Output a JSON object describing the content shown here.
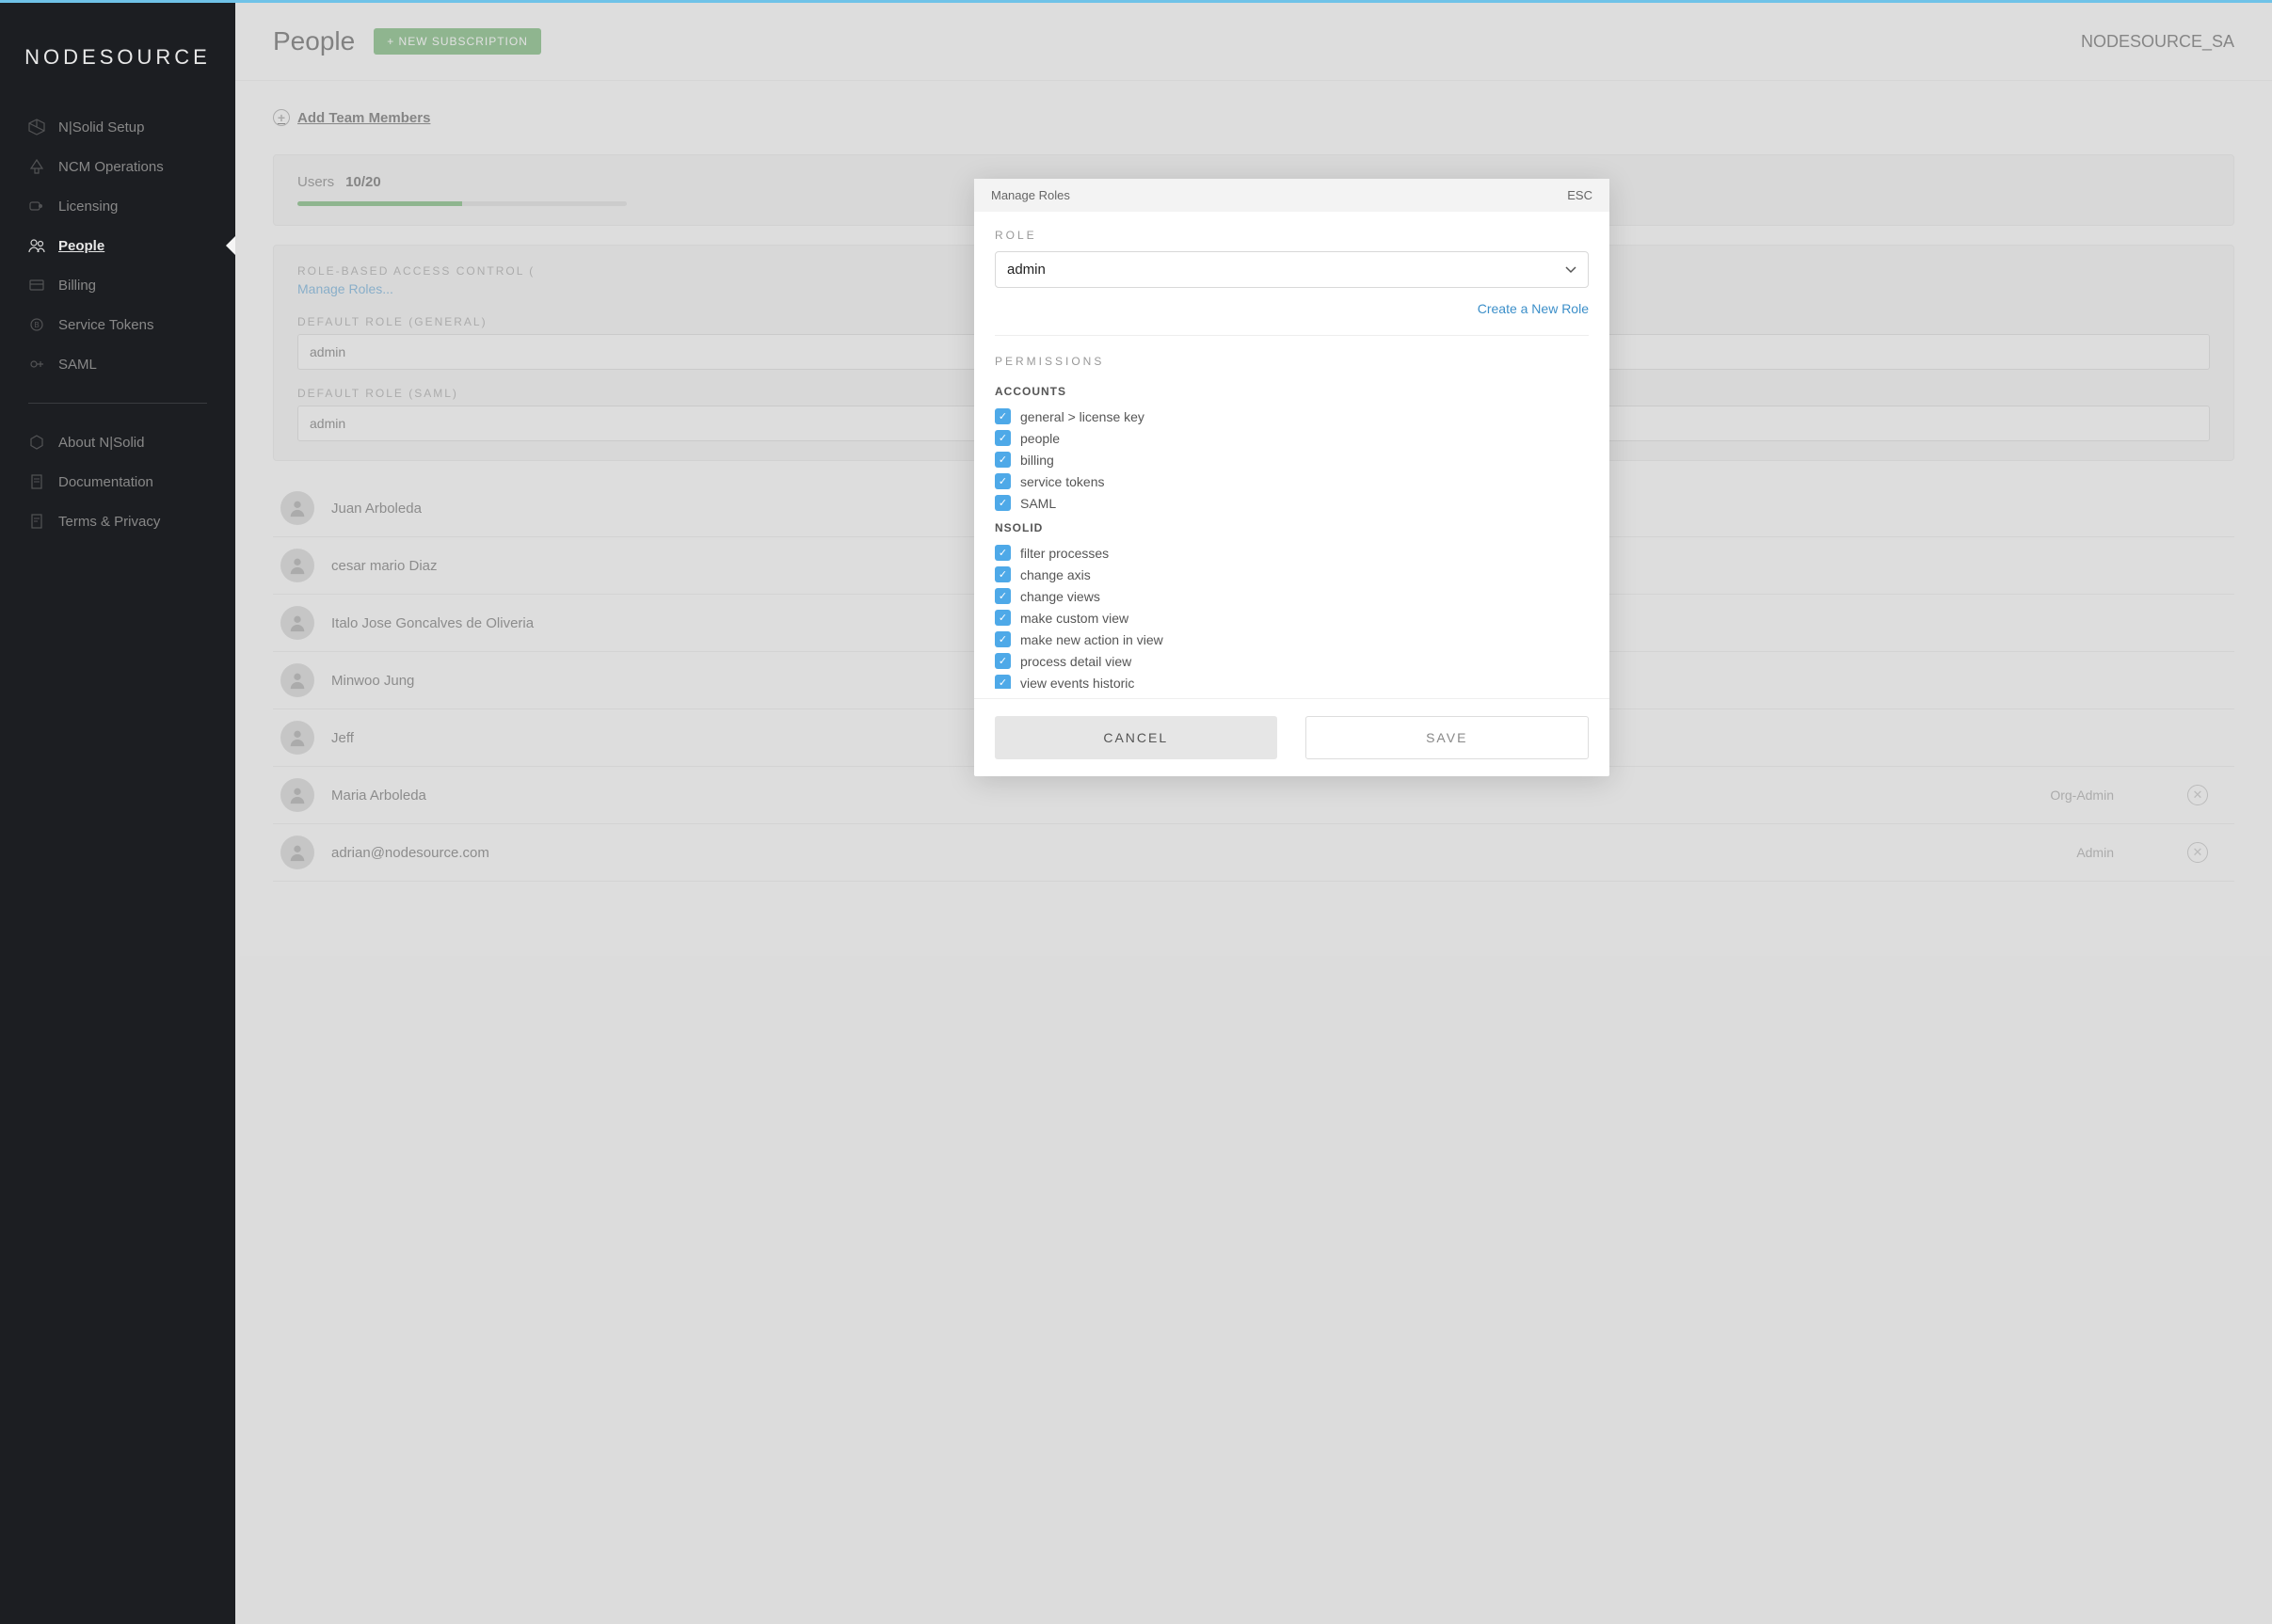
{
  "brand": "NODESOURCE",
  "sidebar": {
    "main_items": [
      {
        "label": "N|Solid Setup",
        "icon": "cube"
      },
      {
        "label": "NCM Operations",
        "icon": "tree"
      },
      {
        "label": "Licensing",
        "icon": "key"
      },
      {
        "label": "People",
        "icon": "people",
        "active": true
      },
      {
        "label": "Billing",
        "icon": "card"
      },
      {
        "label": "Service Tokens",
        "icon": "token"
      },
      {
        "label": "SAML",
        "icon": "saml"
      }
    ],
    "secondary_items": [
      {
        "label": "About N|Solid",
        "icon": "hex"
      },
      {
        "label": "Documentation",
        "icon": "doc"
      },
      {
        "label": "Terms & Privacy",
        "icon": "terms"
      }
    ]
  },
  "header": {
    "title": "People",
    "new_subscription_label": "+ NEW SUBSCRIPTION",
    "org_name": "NODESOURCE_SA"
  },
  "content": {
    "add_members_label": "Add Team Members",
    "users_label": "Users",
    "users_count": "10/20",
    "progress_percent": 50,
    "rbac_title": "ROLE-BASED ACCESS CONTROL (",
    "manage_roles_label": "Manage Roles...",
    "default_role_general_label": "DEFAULT ROLE (GENERAL)",
    "default_role_general_value": "admin",
    "default_role_saml_label": "DEFAULT ROLE (SAML)",
    "default_role_saml_value": "admin",
    "users": [
      {
        "name": "Juan Arboleda",
        "role": ""
      },
      {
        "name": "cesar mario Diaz",
        "role": ""
      },
      {
        "name": "Italo Jose Goncalves de Oliveria",
        "role": ""
      },
      {
        "name": "Minwoo Jung",
        "role": ""
      },
      {
        "name": "Jeff",
        "role": ""
      },
      {
        "name": "Maria Arboleda",
        "role": "Org-Admin"
      },
      {
        "name": "adrian@nodesource.com",
        "role": "Admin"
      }
    ]
  },
  "modal": {
    "title": "Manage Roles",
    "esc_label": "ESC",
    "role_label": "ROLE",
    "role_value": "admin",
    "create_role_label": "Create a New Role",
    "permissions_label": "PERMISSIONS",
    "groups": [
      {
        "title": "ACCOUNTS",
        "items": [
          {
            "label": "general > license key",
            "checked": true
          },
          {
            "label": "people",
            "checked": true
          },
          {
            "label": "billing",
            "checked": true
          },
          {
            "label": "service tokens",
            "checked": true
          },
          {
            "label": "SAML",
            "checked": true
          }
        ]
      },
      {
        "title": "NSOLID",
        "items": [
          {
            "label": "filter processes",
            "checked": true
          },
          {
            "label": "change axis",
            "checked": true
          },
          {
            "label": "change views",
            "checked": true
          },
          {
            "label": "make custom view",
            "checked": true
          },
          {
            "label": "make new action in view",
            "checked": true
          },
          {
            "label": "process detail view",
            "checked": true
          },
          {
            "label": "view events historic",
            "checked": true
          }
        ]
      }
    ],
    "cancel_label": "CANCEL",
    "save_label": "SAVE"
  },
  "colors": {
    "sidebar_bg": "#1c1e22",
    "accent_green": "#4a9d4a",
    "link_blue": "#3c8fc9",
    "checkbox_blue": "#4ea9e8",
    "top_border": "#6fc2e8"
  }
}
